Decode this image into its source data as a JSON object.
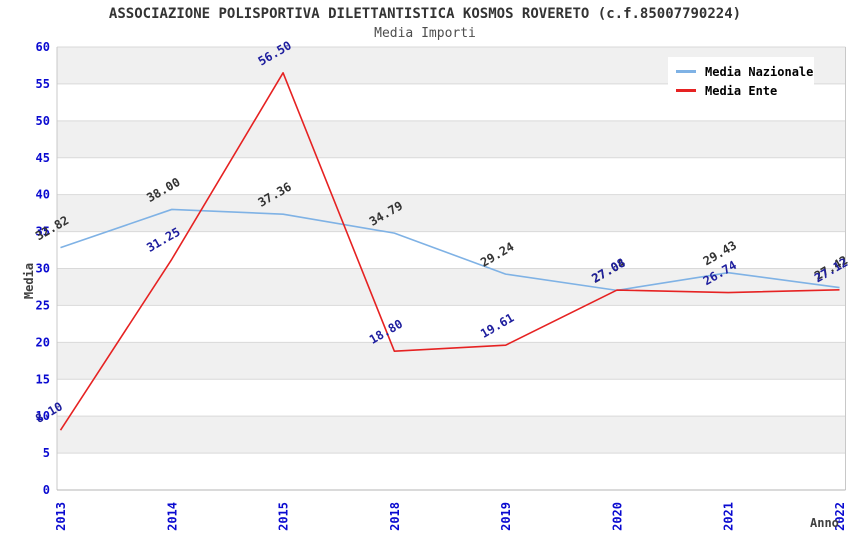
{
  "header": {
    "title": "ASSOCIAZIONE POLISPORTIVA DILETTANTISTICA KOSMOS ROVERETO (c.f.85007790224)",
    "subtitle": "Media Importi"
  },
  "chart_data": {
    "type": "line",
    "title": "ASSOCIAZIONE POLISPORTIVA DILETTANTISTICA KOSMOS ROVERETO (c.f.85007790224)",
    "subtitle": "Media Importi",
    "categories": [
      "2013",
      "2014",
      "2015",
      "2018",
      "2019",
      "2020",
      "2021",
      "2022"
    ],
    "series": [
      {
        "name": "Media Nazionale",
        "color": "#7fb2e5",
        "label_color": "#333333",
        "values": [
          32.82,
          38.0,
          37.36,
          34.79,
          29.24,
          27.04,
          29.43,
          27.42
        ]
      },
      {
        "name": "Media Ente",
        "color": "#e62222",
        "label_color": "#1e1e9e",
        "values": [
          8.1,
          31.25,
          56.5,
          18.8,
          19.61,
          27.08,
          26.74,
          27.12
        ]
      }
    ],
    "xlabel": "Anno",
    "ylabel": "Media",
    "ylim": [
      0,
      60
    ],
    "ytick_step": 5,
    "grid": true,
    "legend_position": "top-right",
    "colors": {
      "tick_label": "#0a0ad0",
      "axis_title": "#404040",
      "stripe": "#f0f0f0",
      "gridline": "#d9d9d9",
      "plot_border": "#c8c8c8"
    }
  }
}
